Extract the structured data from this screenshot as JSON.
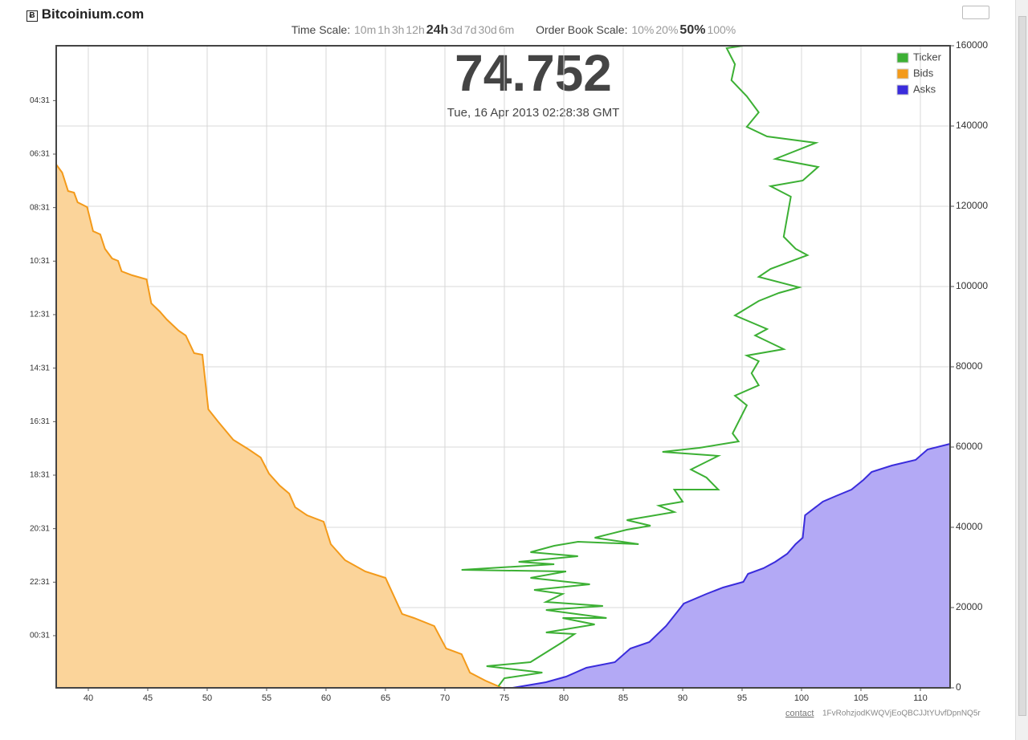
{
  "header": {
    "logo_icon": "Ƀ",
    "site": "Bitcoinium.com",
    "time_scale_label": "Time Scale:",
    "time_scales": [
      "10m",
      "1h",
      "3h",
      "12h",
      "24h",
      "3d",
      "7d",
      "30d",
      "6m"
    ],
    "time_scale_selected": "24h",
    "order_book_label": "Order Book Scale:",
    "order_book_scales": [
      "10%",
      "20%",
      "50%",
      "100%"
    ],
    "order_book_selected": "50%"
  },
  "chart_data": {
    "type": "orderbook",
    "last_price": 74.752,
    "timestamp": "Tue, 16 Apr 2013 02:28:38 GMT",
    "xlim": [
      37.3,
      112.5
    ],
    "xticks": [
      40,
      45,
      50,
      55,
      60,
      65,
      70,
      75,
      80,
      85,
      90,
      95,
      100,
      105,
      110
    ],
    "ylim": [
      0,
      24
    ],
    "yticks": [
      {
        "value": 1.95,
        "label": "00:31"
      },
      {
        "value": 3.95,
        "label": "22:31"
      },
      {
        "value": 5.95,
        "label": "20:31"
      },
      {
        "value": 7.95,
        "label": "18:31"
      },
      {
        "value": 9.95,
        "label": "16:31"
      },
      {
        "value": 11.95,
        "label": "14:31"
      },
      {
        "value": 13.95,
        "label": "12:31"
      },
      {
        "value": 15.95,
        "label": "10:31"
      },
      {
        "value": 17.95,
        "label": "08:31"
      },
      {
        "value": 19.95,
        "label": "06:31"
      },
      {
        "value": 21.95,
        "label": "04:31"
      }
    ],
    "y2lim": [
      0,
      160000
    ],
    "y2ticks": [
      0,
      20000,
      40000,
      60000,
      80000,
      100000,
      120000,
      140000,
      160000
    ],
    "grid": true,
    "legend": "top-right",
    "series": [
      {
        "name": "Ticker",
        "type": "line",
        "color": "#3cb034",
        "axis": "y",
        "x": [
          74.5,
          75.0,
          78.2,
          73.5,
          77.2,
          79.9,
          80.9,
          78.5,
          82.6,
          79.9,
          83.6,
          78.5,
          83.3,
          78.5,
          79.9,
          77.5,
          82.2,
          77.2,
          80.2,
          71.4,
          79.2,
          76.2,
          81.2,
          77.2,
          79.2,
          81.2,
          86.3,
          82.6,
          85.3,
          87.3,
          85.3,
          89.3,
          88.0,
          90.0,
          89.3,
          93.0,
          92.0,
          90.7,
          93.0,
          88.3,
          91.4,
          94.7,
          94.2,
          95.4,
          94.4,
          96.4,
          95.8,
          96.4,
          95.4,
          98.5,
          96.1,
          97.1,
          94.4,
          96.4,
          98.1,
          99.8,
          96.4,
          97.4,
          100.5,
          99.5,
          98.5,
          99.1,
          97.4,
          100.1,
          101.4,
          97.8,
          101.2,
          97.1,
          95.4,
          96.4,
          95.4,
          94.1,
          94.4,
          93.7,
          95.1
        ],
        "values": [
          0.06,
          0.36,
          0.57,
          0.81,
          0.96,
          1.71,
          2.01,
          2.07,
          2.37,
          2.61,
          2.61,
          2.91,
          3.06,
          3.21,
          3.51,
          3.66,
          3.87,
          4.11,
          4.35,
          4.41,
          4.62,
          4.71,
          4.92,
          5.07,
          5.31,
          5.46,
          5.37,
          5.61,
          5.91,
          6.06,
          6.27,
          6.57,
          6.81,
          6.96,
          7.41,
          7.41,
          7.86,
          8.16,
          8.67,
          8.82,
          8.97,
          9.21,
          9.51,
          10.56,
          10.92,
          11.31,
          11.76,
          12.21,
          12.42,
          12.66,
          13.17,
          13.41,
          13.92,
          14.46,
          14.76,
          14.97,
          15.36,
          15.66,
          16.17,
          16.41,
          16.86,
          18.36,
          18.75,
          18.96,
          19.47,
          19.77,
          20.37,
          20.61,
          20.97,
          21.51,
          22.11,
          22.71,
          23.31,
          23.91,
          24.0
        ]
      },
      {
        "name": "Bids",
        "type": "area",
        "color": "#f39a1a",
        "fill": "#fbd49a",
        "axis": "y2",
        "x": [
          37.3,
          37.8,
          38.3,
          38.8,
          39.1,
          39.9,
          40.4,
          41.0,
          41.4,
          42.0,
          42.5,
          42.8,
          43.7,
          44.9,
          45.3,
          46.0,
          46.6,
          47.6,
          48.2,
          48.9,
          49.6,
          50.1,
          50.9,
          52.2,
          53.5,
          54.5,
          55.2,
          56.1,
          56.9,
          57.4,
          58.4,
          59.8,
          60.4,
          61.6,
          63.3,
          65.0,
          66.4,
          67.4,
          69.1,
          70.1,
          71.4,
          72.1,
          73.4,
          74.8
        ],
        "values": [
          130400,
          128400,
          123800,
          123400,
          121000,
          119800,
          113800,
          113000,
          109400,
          107000,
          106400,
          103800,
          102800,
          101800,
          95800,
          93800,
          91800,
          89000,
          87800,
          83400,
          83000,
          69400,
          66400,
          61800,
          59400,
          57400,
          53400,
          50400,
          48400,
          45000,
          43000,
          41400,
          35800,
          31800,
          29000,
          27400,
          18400,
          17400,
          15400,
          9800,
          8400,
          3800,
          1800,
          0
        ]
      },
      {
        "name": "Asks",
        "type": "area",
        "color": "#3a2cdc",
        "fill": "#b3a9f5",
        "axis": "y2",
        "x": [
          75.7,
          78.5,
          80.2,
          81.9,
          84.3,
          85.6,
          87.2,
          88.6,
          90.1,
          92.0,
          93.4,
          95.1,
          95.5,
          96.8,
          97.8,
          98.8,
          99.5,
          100.1,
          100.3,
          101.8,
          102.9,
          104.2,
          105.2,
          105.9,
          107.6,
          109.6,
          110.6,
          112.5
        ],
        "values": [
          0,
          1400,
          2800,
          5000,
          6400,
          9800,
          11400,
          15400,
          21000,
          23400,
          25000,
          26400,
          28400,
          29800,
          31400,
          33400,
          35800,
          37400,
          43000,
          46400,
          47800,
          49400,
          51800,
          53800,
          55400,
          56800,
          59400,
          60800
        ]
      }
    ]
  },
  "footer": {
    "contact": "contact",
    "address": "1FvRohzjodKWQVjEoQBCJJtYUvfDpnNQ5r"
  }
}
